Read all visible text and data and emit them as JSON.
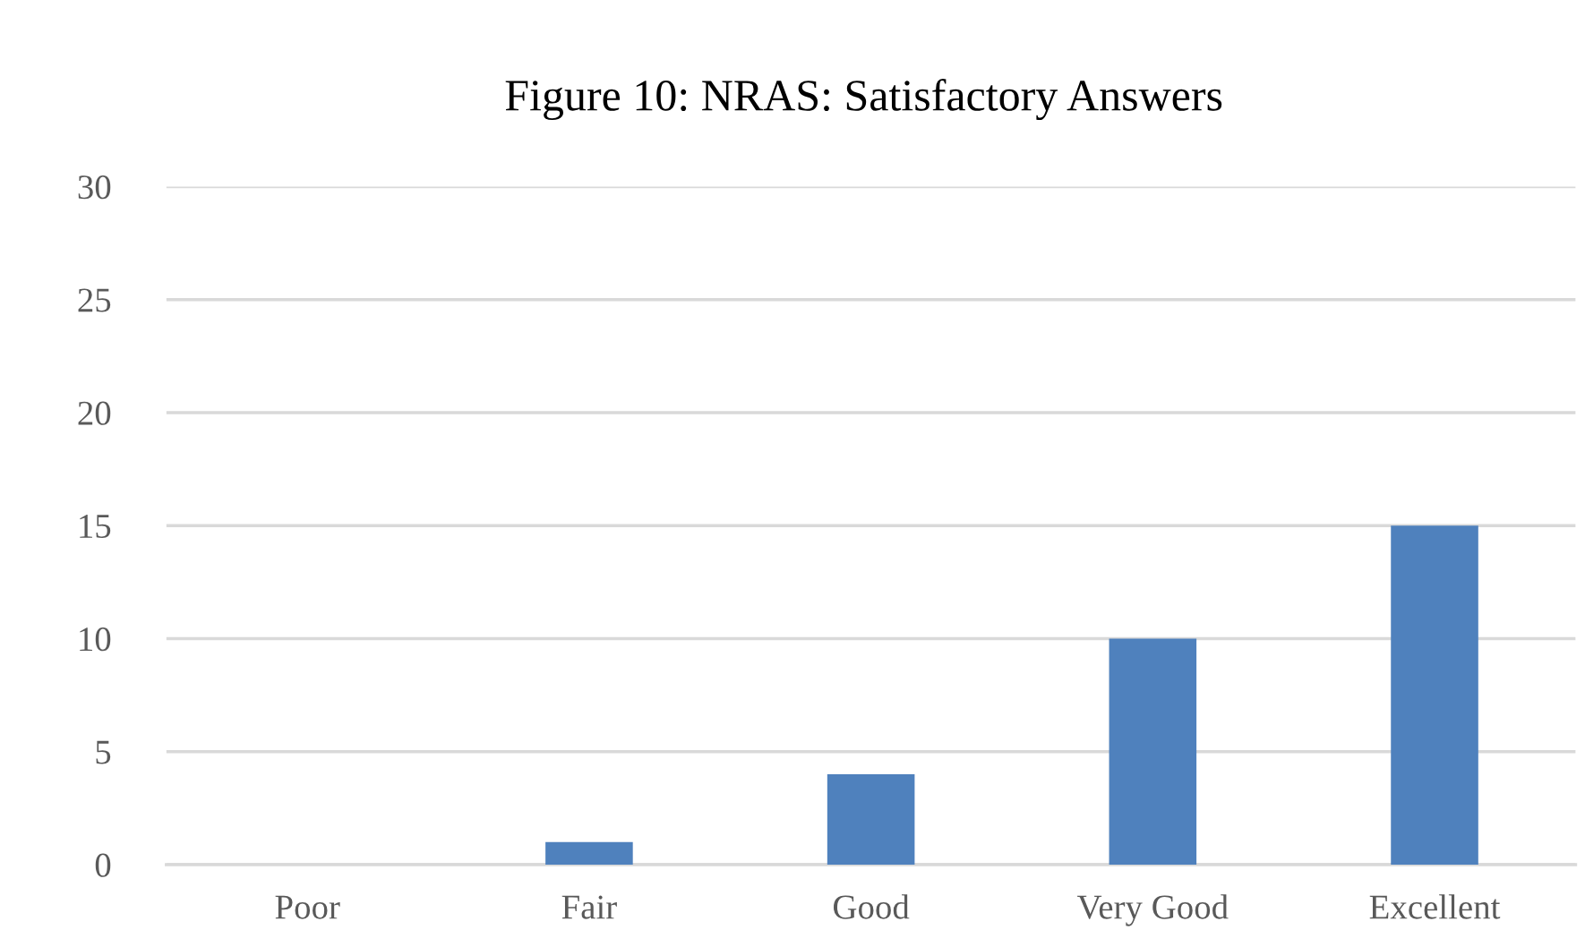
{
  "chart_data": {
    "type": "bar",
    "title": "Figure 10: NRAS: Satisfactory Answers",
    "categories": [
      "Poor",
      "Fair",
      "Good",
      "Very Good",
      "Excellent"
    ],
    "values": [
      0,
      1,
      4,
      10,
      15
    ],
    "color": "#4f81bd",
    "ylim": [
      0,
      30
    ],
    "yticks": [
      0,
      5,
      10,
      15,
      20,
      25,
      30
    ],
    "grid": "y",
    "legend": false
  }
}
